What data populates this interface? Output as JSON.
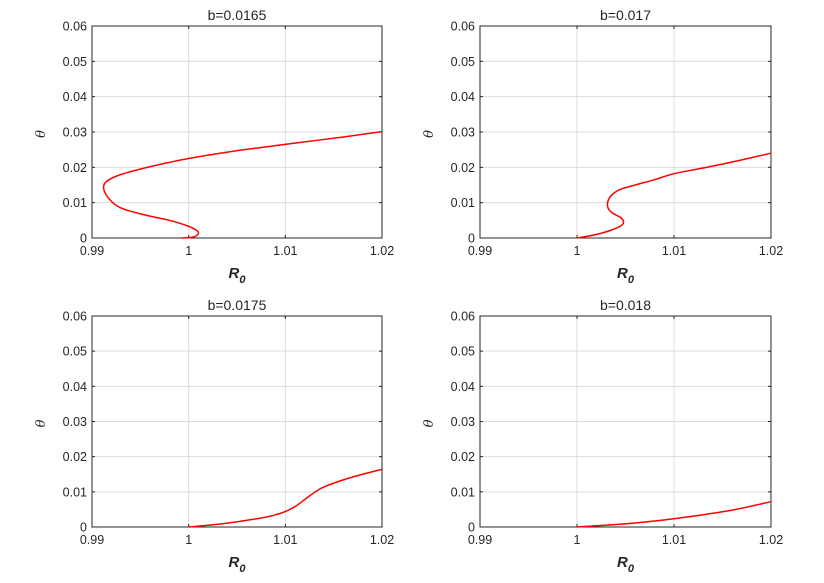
{
  "colors": {
    "curve": "#ff0000",
    "axes": "#262626",
    "grid": "#dcdcdc",
    "background": "#ffffff"
  },
  "chart_data": [
    {
      "type": "line",
      "title": "b=0.0165",
      "xlabel": "R",
      "xlabel_sub": "0",
      "ylabel": "θ",
      "xlim": [
        0.99,
        1.02
      ],
      "ylim": [
        0,
        0.06
      ],
      "xticks": [
        "0.99",
        "1",
        "1.01",
        "1.02"
      ],
      "yticks": [
        "0",
        "0.01",
        "0.02",
        "0.03",
        "0.04",
        "0.05",
        "0.06"
      ],
      "grid": true,
      "series": [
        {
          "x": [
            0.9993,
            1.0005,
            1.001,
            1.0008,
            0.9998,
            0.998,
            0.9955,
            0.993,
            0.9918,
            0.9912,
            0.9915,
            0.9928,
            0.995,
            0.998,
            1.0,
            1.004,
            1.008,
            1.012,
            1.016,
            1.02
          ],
          "y": [
            0.0,
            0.0003,
            0.0012,
            0.0022,
            0.0035,
            0.005,
            0.0065,
            0.0085,
            0.011,
            0.014,
            0.016,
            0.0178,
            0.0195,
            0.0214,
            0.0225,
            0.0243,
            0.0258,
            0.0272,
            0.0286,
            0.0301
          ]
        }
      ]
    },
    {
      "type": "line",
      "title": "b=0.017",
      "xlabel": "R",
      "xlabel_sub": "0",
      "ylabel": "θ",
      "xlim": [
        0.99,
        1.02
      ],
      "ylim": [
        0,
        0.06
      ],
      "xticks": [
        "0.99",
        "1",
        "1.01",
        "1.02"
      ],
      "yticks": [
        "0",
        "0.01",
        "0.02",
        "0.03",
        "0.04",
        "0.05",
        "0.06"
      ],
      "grid": true,
      "series": [
        {
          "x": [
            1.0,
            1.002,
            1.0035,
            1.0045,
            1.0048,
            1.0045,
            1.0037,
            1.0032,
            1.0032,
            1.0036,
            1.0045,
            1.006,
            1.008,
            1.01,
            1.013,
            1.016,
            1.02
          ],
          "y": [
            0.0,
            0.001,
            0.0022,
            0.0034,
            0.0045,
            0.0058,
            0.007,
            0.0085,
            0.0105,
            0.0122,
            0.0138,
            0.015,
            0.0165,
            0.0182,
            0.0198,
            0.0215,
            0.024
          ]
        }
      ]
    },
    {
      "type": "line",
      "title": "b=0.0175",
      "xlabel": "R",
      "xlabel_sub": "0",
      "ylabel": "θ",
      "xlim": [
        0.99,
        1.02
      ],
      "ylim": [
        0,
        0.06
      ],
      "xticks": [
        "0.99",
        "1",
        "1.01",
        "1.02"
      ],
      "yticks": [
        "0",
        "0.01",
        "0.02",
        "0.03",
        "0.04",
        "0.05",
        "0.06"
      ],
      "grid": true,
      "series": [
        {
          "x": [
            1.0,
            1.002,
            1.004,
            1.006,
            1.008,
            1.009,
            1.01,
            1.011,
            1.012,
            1.013,
            1.014,
            1.016,
            1.018,
            1.02
          ],
          "y": [
            0.0,
            0.0005,
            0.0011,
            0.0019,
            0.0028,
            0.0035,
            0.0044,
            0.0058,
            0.0078,
            0.0098,
            0.0114,
            0.0134,
            0.015,
            0.0164
          ]
        }
      ]
    },
    {
      "type": "line",
      "title": "b=0.018",
      "xlabel": "R",
      "xlabel_sub": "0",
      "ylabel": "θ",
      "xlim": [
        0.99,
        1.02
      ],
      "ylim": [
        0,
        0.06
      ],
      "xticks": [
        "0.99",
        "1",
        "1.01",
        "1.02"
      ],
      "yticks": [
        "0",
        "0.01",
        "0.02",
        "0.03",
        "0.04",
        "0.05",
        "0.06"
      ],
      "grid": true,
      "series": [
        {
          "x": [
            1.0,
            1.004,
            1.008,
            1.012,
            1.016,
            1.02
          ],
          "y": [
            0.0,
            0.0007,
            0.0017,
            0.0031,
            0.0048,
            0.0072
          ]
        }
      ]
    }
  ]
}
